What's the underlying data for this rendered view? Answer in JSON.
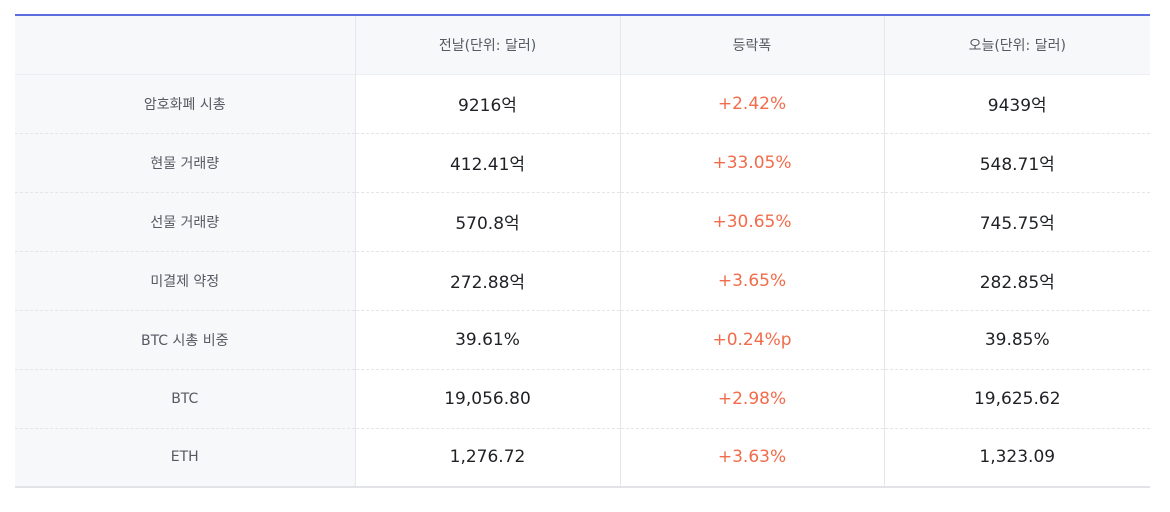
{
  "table": {
    "headers": [
      "",
      "전날(단위: 달러)",
      "등락폭",
      "오늘(단위: 달러)"
    ],
    "rows": [
      {
        "label": "암호화폐 시총",
        "prev": "9216억",
        "change": "+2.42%",
        "today": "9439억"
      },
      {
        "label": "현물 거래량",
        "prev": "412.41억",
        "change": "+33.05%",
        "today": "548.71억"
      },
      {
        "label": "선물 거래량",
        "prev": "570.8억",
        "change": "+30.65%",
        "today": "745.75억"
      },
      {
        "label": "미결제 약정",
        "prev": "272.88억",
        "change": "+3.65%",
        "today": "282.85억"
      },
      {
        "label": "BTC 시총 비중",
        "prev": "39.61%",
        "change": "+0.24%p",
        "today": "39.85%"
      },
      {
        "label": "BTC",
        "prev": "19,056.80",
        "change": "+2.98%",
        "today": "19,625.62"
      },
      {
        "label": "ETH",
        "prev": "1,276.72",
        "change": "+3.63%",
        "today": "1,323.09"
      }
    ]
  },
  "colors": {
    "header_border": "#5b6ee0",
    "label_bg": "#f7f8fa",
    "change_text": "#f26b4a"
  }
}
